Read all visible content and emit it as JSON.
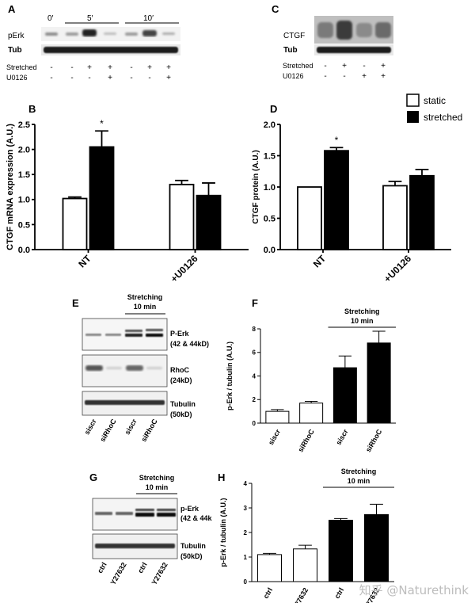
{
  "panels": {
    "A": {
      "letter": "A",
      "time_labels": [
        "0′",
        "5′",
        "10′"
      ],
      "rows": [
        "pErk",
        "Tub"
      ],
      "treat_names": [
        "Stretched",
        "U0126"
      ],
      "stretched": [
        "-",
        "-",
        "+",
        "+",
        "-",
        "+",
        "+"
      ],
      "u0126": [
        "-",
        "-",
        "-",
        "+",
        "-",
        "-",
        "+"
      ]
    },
    "C": {
      "letter": "C",
      "rows": [
        "CTGF",
        "Tub"
      ],
      "treat_names": [
        "Stretched",
        "U0126"
      ],
      "stretched": [
        "-",
        "+",
        "-",
        "+"
      ],
      "u0126": [
        "-",
        "-",
        "+",
        "+"
      ]
    },
    "E": {
      "letter": "E",
      "header": [
        "Stretching",
        "10 min"
      ],
      "blot_labels": [
        [
          "P-Erk",
          "(42 & 44kD)"
        ],
        [
          "RhoC",
          "(24kD)"
        ],
        [
          "Tubulin",
          "(50kD)"
        ]
      ],
      "lanes": [
        "siscr",
        "siRhoC",
        "siscr",
        "siRhoC"
      ]
    },
    "G": {
      "letter": "G",
      "header": [
        "Stretching",
        "10 min"
      ],
      "blot_labels": [
        [
          "p-Erk",
          "(42 & 44k"
        ],
        [
          "Tubulin",
          "(50kD)"
        ]
      ],
      "lanes": [
        "ctrl",
        "Y27632",
        "ctrl",
        "Y27632"
      ]
    }
  },
  "legend": {
    "static": "static",
    "stretched": "stretched"
  },
  "colors": {
    "static": "#ffffff",
    "stretched": "#000000"
  },
  "watermark": "知乎 @Naturethink",
  "chart_data": [
    {
      "panel": "B",
      "type": "bar",
      "categories": [
        "NT",
        "+U0126"
      ],
      "series": [
        {
          "name": "static",
          "values": [
            1.02,
            1.3
          ],
          "errors": [
            0.03,
            0.08
          ]
        },
        {
          "name": "stretched",
          "values": [
            2.05,
            1.08
          ],
          "errors": [
            0.32,
            0.25
          ]
        }
      ],
      "ylabel": "CTGF mRNA expression (A.U.)",
      "ylim": [
        0,
        2.5
      ],
      "yticks": [
        "0.0",
        "0.5",
        "1.0",
        "1.5",
        "2.0",
        "2.5"
      ],
      "annotations": [
        {
          "text": "*",
          "category": 0,
          "series": 1
        }
      ]
    },
    {
      "panel": "D",
      "type": "bar",
      "categories": [
        "NT",
        "+U0126"
      ],
      "series": [
        {
          "name": "static",
          "values": [
            1.0,
            1.02
          ],
          "errors": [
            0.0,
            0.07
          ]
        },
        {
          "name": "stretched",
          "values": [
            1.58,
            1.18
          ],
          "errors": [
            0.05,
            0.1
          ]
        }
      ],
      "ylabel": "CTGF protein (A.U.)",
      "ylim": [
        0,
        2.0
      ],
      "yticks": [
        "0.0",
        "0.5",
        "1.0",
        "1.5",
        "2.0"
      ],
      "annotations": [
        {
          "text": "*",
          "category": 0,
          "series": 1
        }
      ]
    },
    {
      "panel": "F",
      "type": "bar",
      "categories": [
        "siscr",
        "siRhoC",
        "siscr",
        "siRhoC"
      ],
      "values": [
        1.0,
        1.7,
        4.7,
        6.8
      ],
      "errors": [
        0.15,
        0.15,
        1.0,
        1.0
      ],
      "fills": [
        "static",
        "static",
        "stretched",
        "stretched"
      ],
      "ylabel": "p-Erk / tubulin (A.U.)",
      "ylim": [
        0,
        8
      ],
      "yticks": [
        "0",
        "2",
        "4",
        "6",
        "8"
      ],
      "header": [
        "Stretching",
        "10 min"
      ]
    },
    {
      "panel": "H",
      "type": "bar",
      "categories": [
        "ctrl",
        "Y27632",
        "ctrl",
        "Y27632"
      ],
      "values": [
        1.1,
        1.33,
        2.5,
        2.73
      ],
      "errors": [
        0.05,
        0.15,
        0.07,
        0.42
      ],
      "fills": [
        "static",
        "static",
        "stretched",
        "stretched"
      ],
      "ylabel": "p-Erk / tubulin (A.U.)",
      "ylim": [
        0,
        4
      ],
      "yticks": [
        "0",
        "1",
        "2",
        "3",
        "4"
      ],
      "header": [
        "Stretching",
        "10 min"
      ]
    }
  ]
}
